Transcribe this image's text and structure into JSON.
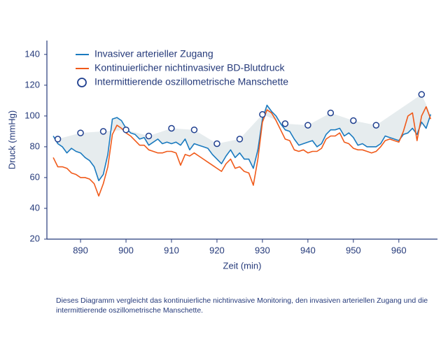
{
  "chart_data": {
    "type": "line",
    "ylabel": "Druck  (mmHg)",
    "xlabel": "Zeit  (min)",
    "xlim": [
      882.6,
      968.5
    ],
    "xticks": [
      890,
      900,
      910,
      920,
      930,
      940,
      950,
      960
    ],
    "ylim": [
      20,
      149
    ],
    "yticks": [
      20,
      40,
      60,
      80,
      100,
      120,
      140
    ],
    "x": [
      884,
      885,
      886,
      887,
      888,
      889,
      890,
      891,
      892,
      893,
      894,
      895,
      896,
      897,
      898,
      899,
      900,
      901,
      902,
      903,
      904,
      905,
      906,
      907,
      908,
      909,
      910,
      911,
      912,
      913,
      914,
      915,
      916,
      917,
      918,
      919,
      920,
      921,
      922,
      923,
      924,
      925,
      926,
      927,
      928,
      929,
      930,
      931,
      932,
      933,
      934,
      935,
      936,
      937,
      938,
      939,
      940,
      941,
      942,
      943,
      944,
      945,
      946,
      947,
      948,
      949,
      950,
      951,
      952,
      953,
      954,
      955,
      956,
      957,
      958,
      959,
      960,
      961,
      962,
      963,
      964,
      965,
      966,
      967
    ],
    "series": [
      {
        "name": "Invasiver arterieller Zugang",
        "color": "#1a7abf",
        "values": [
          87,
          82,
          80,
          76,
          79,
          77,
          76,
          73,
          71,
          67,
          58,
          62,
          75,
          98,
          99,
          97,
          92,
          89,
          88,
          85,
          86,
          81,
          83,
          85,
          82,
          83,
          82,
          83,
          81,
          85,
          78,
          82,
          81,
          80,
          79,
          75,
          72,
          69,
          74,
          78,
          73,
          76,
          72,
          72,
          66,
          78,
          98,
          107,
          103,
          100,
          95,
          91,
          90,
          85,
          81,
          82,
          83,
          84,
          80,
          82,
          88,
          91,
          91,
          92,
          87,
          89,
          86,
          81,
          82,
          80,
          80,
          80,
          82,
          87,
          86,
          85,
          84,
          88,
          89,
          92,
          88,
          96,
          92,
          101
        ]
      },
      {
        "name": "Kontinuierlicher nichtinvasiver BD-Blutdruck",
        "color": "#f05a1a",
        "values": [
          73,
          67,
          67,
          66,
          63,
          62,
          60,
          60,
          59,
          56,
          48,
          56,
          67,
          88,
          94,
          92,
          89,
          87,
          84,
          81,
          81,
          78,
          77,
          76,
          76,
          77,
          77,
          76,
          68,
          75,
          74,
          76,
          74,
          72,
          70,
          68,
          66,
          64,
          69,
          72,
          66,
          67,
          64,
          63,
          55,
          72,
          96,
          104,
          102,
          97,
          91,
          85,
          84,
          78,
          77,
          78,
          76,
          77,
          77,
          79,
          85,
          87,
          87,
          89,
          83,
          82,
          79,
          78,
          78,
          77,
          76,
          77,
          80,
          84,
          85,
          84,
          83,
          90,
          100,
          102,
          84,
          100,
          106,
          98
        ]
      },
      {
        "name": "Intermittierende oszillometrische Manschette",
        "color": "#1f3f8f",
        "marker": "circle",
        "x": [
          885,
          890,
          895,
          900,
          905,
          910,
          915,
          920,
          925,
          930,
          935,
          940,
          945,
          950,
          955,
          965
        ],
        "values": [
          85,
          89,
          90,
          91,
          87,
          92,
          91,
          82,
          85,
          101,
          95,
          94,
          102,
          97,
          94,
          114
        ]
      }
    ],
    "caption": "Dieses Diagramm vergleicht das kontinuierliche nichtinvasive Monitoring, den invasiven arteriellen Zugang und die intermittierende oszillometrische Manschette."
  }
}
